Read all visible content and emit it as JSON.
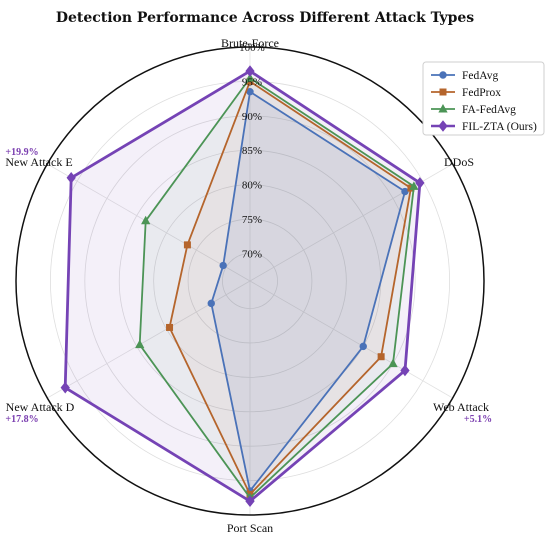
{
  "chart_data": {
    "type": "radar",
    "title": "Detection Performance Across Different Attack Types",
    "axes": [
      "Brute-Force",
      "DDoS",
      "Web Attack",
      "Port Scan",
      "New Attack D",
      "New Attack E"
    ],
    "rlim": [
      66,
      100
    ],
    "ticks": [
      70,
      75,
      80,
      85,
      90,
      95,
      100
    ],
    "tick_labels": [
      "70%",
      "75%",
      "80%",
      "85%",
      "90%",
      "95%",
      "100%"
    ],
    "grid": true,
    "legend_position": "top-right",
    "series": [
      {
        "name": "FedAvg",
        "values": [
          93.5,
          92.0,
          85.0,
          96.5,
          72.5,
          70.5
        ],
        "color": "#4a72b8",
        "marker": "circle"
      },
      {
        "name": "FedProx",
        "values": [
          95.0,
          93.0,
          88.0,
          97.0,
          79.5,
          76.5
        ],
        "color": "#b5652c",
        "marker": "square"
      },
      {
        "name": "FA-FedAvg",
        "values": [
          95.5,
          93.5,
          90.0,
          97.5,
          84.5,
          83.5
        ],
        "color": "#4c9456",
        "marker": "triangle"
      },
      {
        "name": "FIL-ZTA (Ours)",
        "values": [
          96.5,
          94.5,
          92.0,
          98.0,
          97.0,
          96.0
        ],
        "color": "#7543b5",
        "marker": "diamond"
      }
    ],
    "annotations": [
      {
        "axis": "New Attack E",
        "text": "+19.9%"
      },
      {
        "axis": "New Attack D",
        "text": "+17.8%"
      },
      {
        "axis": "Web Attack",
        "text": "+5.1%"
      }
    ]
  }
}
